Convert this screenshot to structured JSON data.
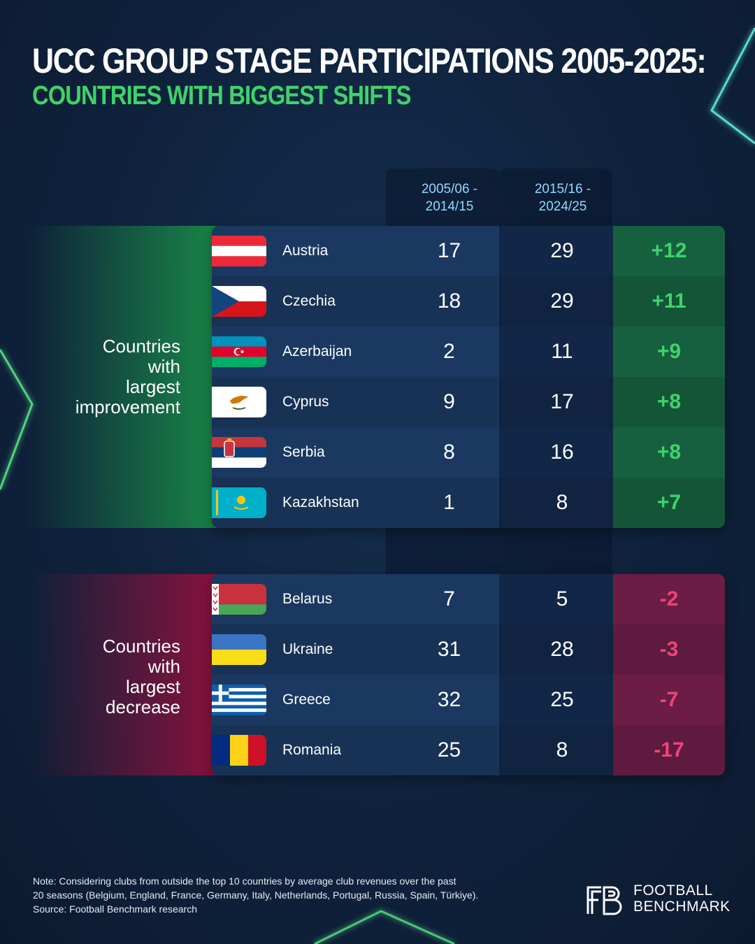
{
  "title": "UCC GROUP STAGE PARTICIPATIONS 2005-2025:",
  "subtitle": "COUNTRIES WITH BIGGEST SHIFTS",
  "columns": {
    "period1": [
      "2005/06 -",
      "2014/15"
    ],
    "period2": [
      "2015/16 -",
      "2024/25"
    ]
  },
  "groups": {
    "improvement_label": [
      "Countries",
      "with",
      "largest",
      "improvement"
    ],
    "decrease_label": [
      "Countries",
      "with",
      "largest",
      "decrease"
    ]
  },
  "colors": {
    "positive": "#3ed36a",
    "negative": "#f0437a",
    "header_text": "#8fd9ff",
    "background": "#10243f"
  },
  "chart_data": {
    "type": "table",
    "title": "UCC GROUP STAGE PARTICIPATIONS 2005-2025:",
    "subtitle": "COUNTRIES WITH BIGGEST SHIFTS",
    "columns": [
      "2005/06 - 2014/15",
      "2015/16 - 2024/25",
      "change"
    ],
    "improvement": [
      {
        "country": "Austria",
        "flag": "austria-flag",
        "p1": 17,
        "p2": 29,
        "change": "+12"
      },
      {
        "country": "Czechia",
        "flag": "czechia-flag",
        "p1": 18,
        "p2": 29,
        "change": "+11"
      },
      {
        "country": "Azerbaijan",
        "flag": "azerbaijan-flag",
        "p1": 2,
        "p2": 11,
        "change": "+9"
      },
      {
        "country": "Cyprus",
        "flag": "cyprus-flag",
        "p1": 9,
        "p2": 17,
        "change": "+8"
      },
      {
        "country": "Serbia",
        "flag": "serbia-flag",
        "p1": 8,
        "p2": 16,
        "change": "+8"
      },
      {
        "country": "Kazakhstan",
        "flag": "kazakhstan-flag",
        "p1": 1,
        "p2": 8,
        "change": "+7"
      }
    ],
    "decrease": [
      {
        "country": "Belarus",
        "flag": "belarus-flag",
        "p1": 7,
        "p2": 5,
        "change": "-2"
      },
      {
        "country": "Ukraine",
        "flag": "ukraine-flag",
        "p1": 31,
        "p2": 28,
        "change": "-3"
      },
      {
        "country": "Greece",
        "flag": "greece-flag",
        "p1": 32,
        "p2": 25,
        "change": "-7"
      },
      {
        "country": "Romania",
        "flag": "romania-flag",
        "p1": 25,
        "p2": 8,
        "change": "-17"
      }
    ]
  },
  "note": [
    "Note: Considering clubs from outside the top 10 countries by average club revenues over the past",
    "20 seasons (Belgium, England, France, Germany, Italy, Netherlands, Portugal, Russia, Spain, Türkiye).",
    "Source: Football Benchmark research"
  ],
  "logo": {
    "line1": "FOOTBALL",
    "line2": "BENCHMARK"
  }
}
